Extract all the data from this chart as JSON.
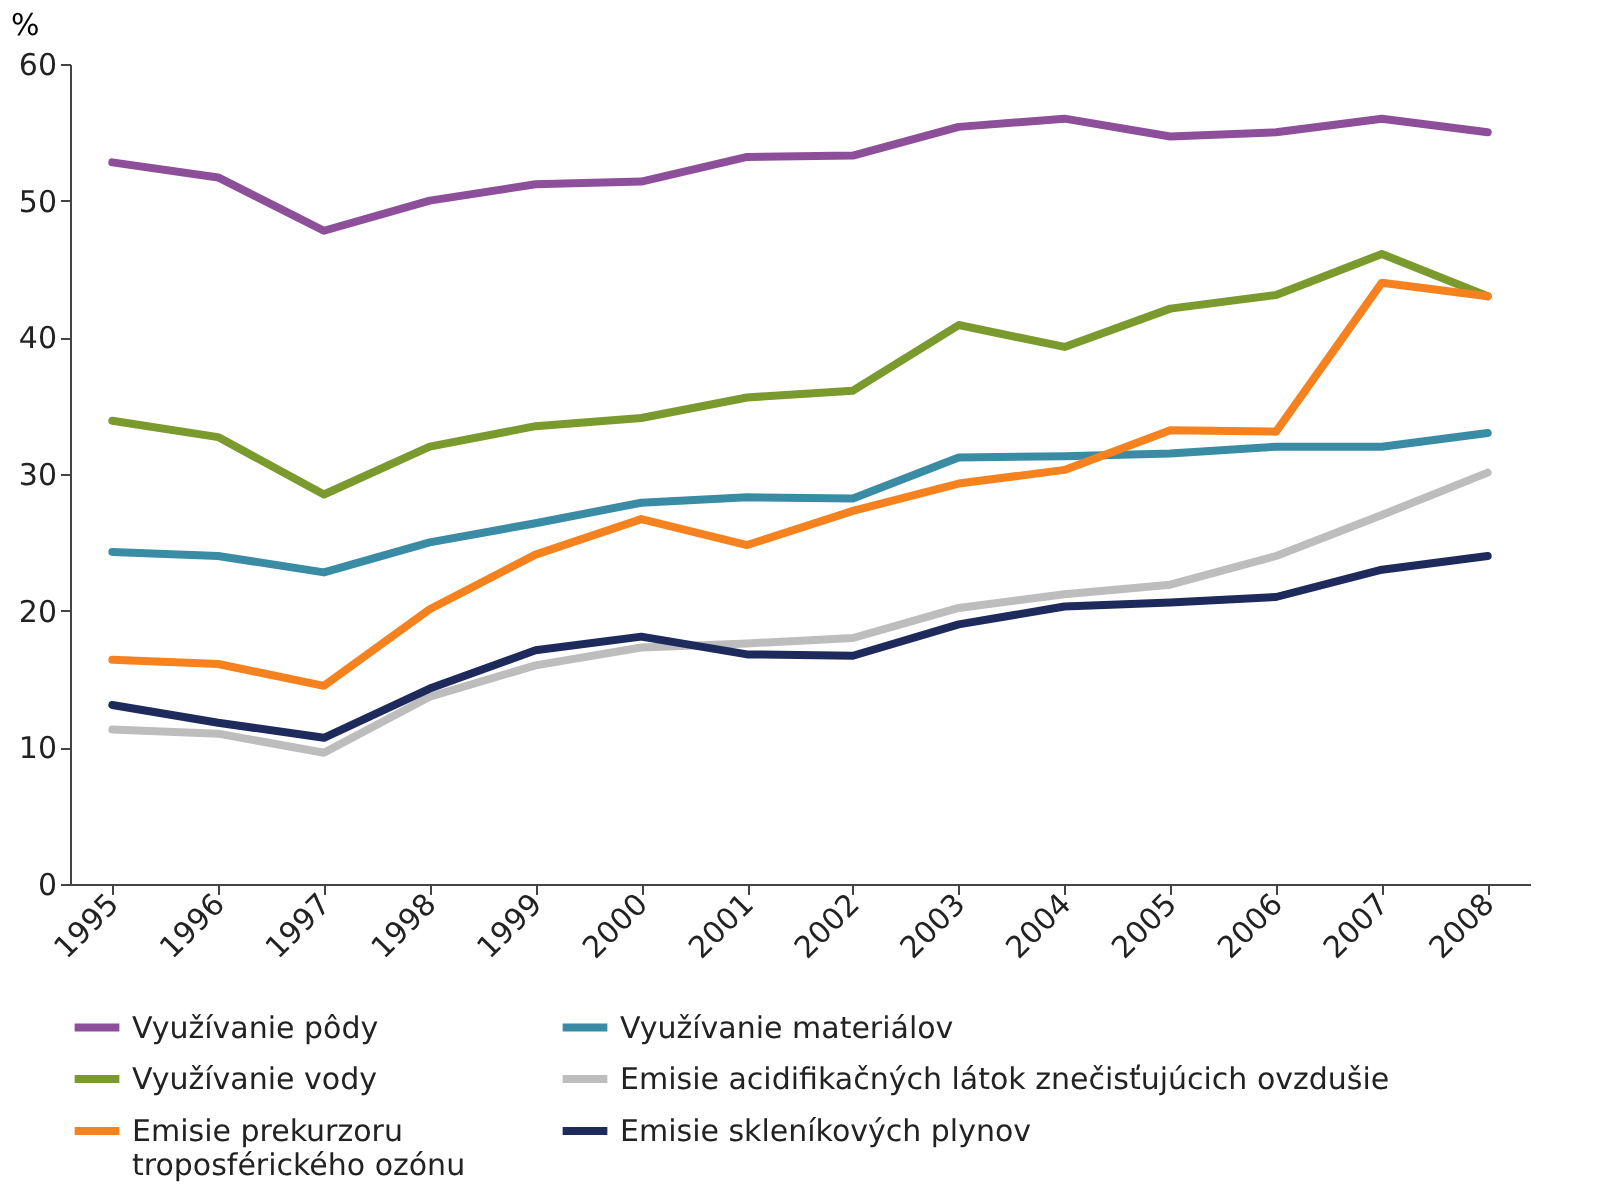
{
  "chart_data": {
    "type": "line",
    "ylabel": "%",
    "categories": [
      "1995",
      "1996",
      "1997",
      "1998",
      "1999",
      "2000",
      "2001",
      "2002",
      "2003",
      "2004",
      "2005",
      "2006",
      "2007",
      "2008"
    ],
    "ylim": [
      0,
      60
    ],
    "yticks": [
      0,
      10,
      20,
      30,
      40,
      50,
      60
    ],
    "grid": false,
    "legend": "bottom",
    "marker": "none",
    "line_style": "solid",
    "series": [
      {
        "name": "Využívanie pôdy",
        "color": "#8e4f9a",
        "values": [
          52.8,
          51.7,
          47.8,
          50,
          51.2,
          51.4,
          53.2,
          53.3,
          55.4,
          56,
          54.7,
          55,
          56,
          55
        ]
      },
      {
        "name": "Využívanie materiálov",
        "color": "#3a8ca4",
        "values": [
          24.3,
          24,
          22.8,
          25,
          26.4,
          27.9,
          28.3,
          28.2,
          31.2,
          31.3,
          31.5,
          32,
          32,
          33
        ]
      },
      {
        "name": "Využívanie vody",
        "color": "#7a9a2e",
        "values": [
          33.9,
          32.7,
          28.5,
          32,
          33.5,
          34.1,
          35.6,
          36.1,
          40.9,
          39.3,
          42.1,
          43.1,
          46.1,
          43
        ]
      },
      {
        "name": "Emisie acidifikačných látok znečisťujúcich ovzdušie",
        "color": "#bdbdbd",
        "values": [
          11.3,
          11,
          9.6,
          13.7,
          16,
          17.3,
          17.6,
          18,
          20.2,
          21.2,
          21.9,
          24,
          27,
          30.1
        ]
      },
      {
        "name": "Emisie prekurzoru\ntroposférického ozónu",
        "color": "#f5821f",
        "values": [
          16.4,
          16.1,
          14.5,
          20.1,
          24.1,
          26.7,
          24.8,
          27.3,
          29.3,
          30.3,
          33.2,
          33.1,
          44,
          43
        ]
      },
      {
        "name": "Emisie skleníkových plynov",
        "color": "#1f2a5c",
        "values": [
          13.1,
          11.8,
          10.7,
          14.3,
          17.1,
          18.1,
          16.8,
          16.7,
          19,
          20.3,
          20.6,
          21,
          23,
          24
        ]
      }
    ]
  }
}
